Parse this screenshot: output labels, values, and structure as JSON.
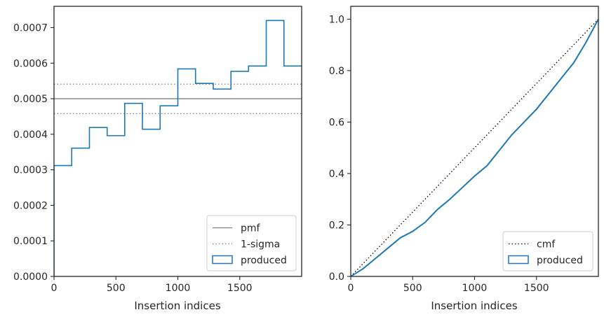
{
  "chart_data": [
    {
      "type": "histogram",
      "xlabel": "Insertion indices",
      "ylabel": "",
      "xlim": [
        0,
        2000
      ],
      "ylim": [
        0,
        0.00076
      ],
      "xticks": [
        0,
        500,
        1000,
        1500
      ],
      "yticks": [
        0,
        0.0001,
        0.0002,
        0.0003,
        0.0004,
        0.0005,
        0.0006,
        0.0007
      ],
      "ytick_labels": [
        "0.0000",
        "0.0001",
        "0.0002",
        "0.0003",
        "0.0004",
        "0.0005",
        "0.0006",
        "0.0007"
      ],
      "legend_position": "lower right",
      "pmf": 0.0005,
      "sigma_band": [
        0.000458,
        0.000541
      ],
      "series": [
        {
          "name": "produced",
          "style": "step",
          "color": "#1f77b4",
          "bin_edges": [
            0,
            143,
            286,
            429,
            571,
            714,
            857,
            1000,
            1143,
            1286,
            1429,
            1571,
            1714,
            1857,
            2000
          ],
          "values": [
            0.000312,
            0.000361,
            0.000419,
            0.000396,
            0.000487,
            0.000414,
            0.00048,
            0.000584,
            0.000543,
            0.000527,
            0.000577,
            0.000592,
            0.00072,
            0.000592
          ]
        }
      ],
      "legend": [
        {
          "label": "pmf",
          "style": "solid",
          "color": "#808080"
        },
        {
          "label": "1-sigma",
          "style": "dotted",
          "color": "#808080"
        },
        {
          "label": "produced",
          "style": "box",
          "color": "#1f77b4"
        }
      ]
    },
    {
      "type": "line",
      "xlabel": "Insertion indices",
      "ylabel": "",
      "xlim": [
        0,
        2000
      ],
      "ylim": [
        0,
        1.05
      ],
      "xticks": [
        0,
        500,
        1000,
        1500
      ],
      "yticks": [
        0,
        0.2,
        0.4,
        0.6,
        0.8,
        1.0
      ],
      "ytick_labels": [
        "0.0",
        "0.2",
        "0.4",
        "0.6",
        "0.8",
        "1.0"
      ],
      "legend_position": "lower right",
      "series": [
        {
          "name": "cmf",
          "style": "dotted",
          "color": "#000000",
          "x": [
            0,
            2000
          ],
          "y": [
            0,
            1.0
          ]
        },
        {
          "name": "produced",
          "style": "step",
          "color": "#1f77b4",
          "x": [
            0,
            100,
            200,
            300,
            400,
            500,
            600,
            700,
            800,
            900,
            1000,
            1100,
            1200,
            1300,
            1400,
            1500,
            1600,
            1700,
            1800,
            1900,
            2000
          ],
          "y": [
            0,
            0.03,
            0.07,
            0.11,
            0.15,
            0.175,
            0.21,
            0.26,
            0.3,
            0.345,
            0.39,
            0.43,
            0.49,
            0.55,
            0.6,
            0.65,
            0.71,
            0.77,
            0.83,
            0.91,
            1.0
          ]
        }
      ],
      "legend": [
        {
          "label": "cmf",
          "style": "dotted",
          "color": "#000000"
        },
        {
          "label": "produced",
          "style": "box",
          "color": "#1f77b4"
        }
      ]
    }
  ]
}
